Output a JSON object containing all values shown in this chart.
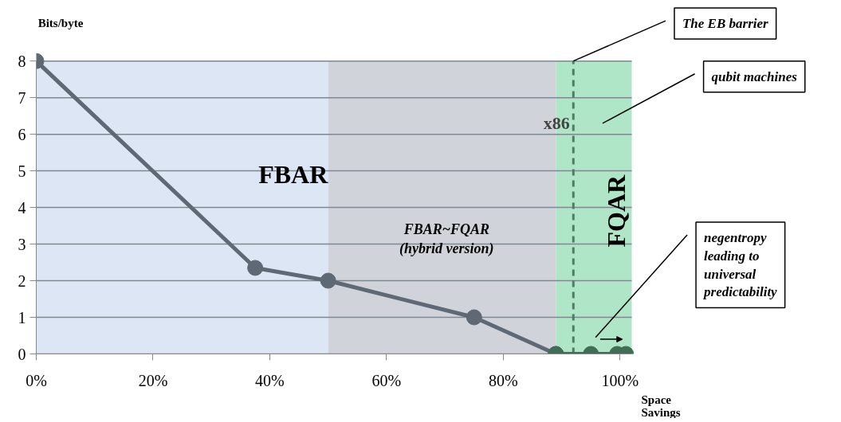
{
  "chart_data": {
    "type": "line",
    "xlabel": "Space\nSavings",
    "ylabel": "Bits/byte",
    "series": [
      {
        "color": "#5f6975",
        "x": [
          0,
          37.5,
          50,
          75,
          89
        ],
        "values": [
          8,
          2.35,
          2,
          1,
          0
        ]
      },
      {
        "color": "#3f6e55",
        "x": [
          89,
          95,
          99.5,
          101
        ],
        "values": [
          0,
          0,
          0,
          0
        ]
      }
    ],
    "xlim": [
      0,
      102
    ],
    "ylim": [
      0,
      8
    ],
    "xticks": [
      {
        "value": 0,
        "label": "0%"
      },
      {
        "value": 20,
        "label": "20%"
      },
      {
        "value": 40,
        "label": "40%"
      },
      {
        "value": 60,
        "label": "60%"
      },
      {
        "value": 80,
        "label": "80%"
      },
      {
        "value": 100,
        "label": "100%"
      }
    ],
    "yticks": [
      0,
      1,
      2,
      3,
      4,
      5,
      6,
      7,
      8
    ],
    "grid": "y",
    "marker": "circle",
    "line_style": "solid",
    "bands": [
      {
        "axis": "x",
        "from": 0,
        "to": 50,
        "label": "FBAR",
        "color": "#dce6f4"
      },
      {
        "axis": "x",
        "from": 50,
        "to": 89,
        "label": "FBAR~FQAR\n(hybrid version)",
        "color": "#d0d4da"
      },
      {
        "axis": "x",
        "from": 89,
        "to": 102,
        "label": "FQAR",
        "color": "#b0e6c8"
      }
    ],
    "ref_lines": [
      {
        "axis": "x",
        "value": 92,
        "label": "x86",
        "color": "#4f7d62",
        "line_style": "dashed"
      }
    ],
    "annotations": [
      {
        "text": "The EB barrier",
        "x": 92,
        "y": 8
      },
      "qubit machines",
      "negentropy\nleading to\nuniversal\npredictability"
    ]
  }
}
